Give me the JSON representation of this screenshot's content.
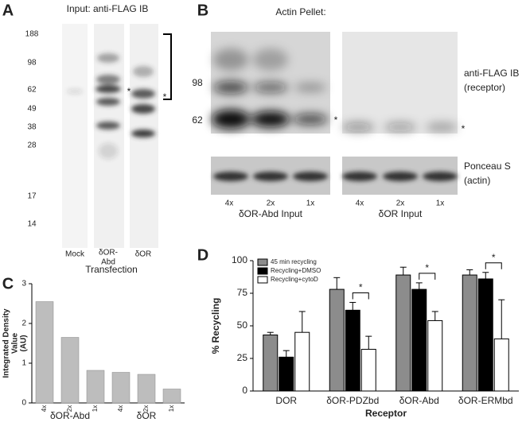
{
  "panels": {
    "a": {
      "label": "A",
      "title": "Input: anti-FLAG IB",
      "markers": [
        "188",
        "98",
        "62",
        "49",
        "38",
        "28",
        "17",
        "14"
      ],
      "lanes": [
        "Mock",
        "δOR-",
        "Abd",
        "δOR"
      ],
      "x_label": "Transfection",
      "stars": [
        "*",
        "*"
      ]
    },
    "b": {
      "label": "B",
      "title": "Actin Pellet:",
      "markers": [
        "98",
        "62"
      ],
      "right_labels": [
        "anti-FLAG IB",
        "(receptor)",
        "Ponceau S",
        "(actin)"
      ],
      "lanes": [
        "4x",
        "2x",
        "1x",
        "4x",
        "2x",
        "1x"
      ],
      "groups": [
        "δOR-Abd Input",
        "δOR Input"
      ],
      "stars": [
        "*",
        "*"
      ]
    },
    "c": {
      "label": "C"
    },
    "d": {
      "label": "D"
    }
  },
  "chart_data": [
    {
      "type": "bar",
      "y_label": [
        "Integrated Density",
        "Value",
        "(AU)"
      ],
      "categories": [
        "4x",
        "2x",
        "1x",
        "4x",
        "2x",
        "1x"
      ],
      "groups": [
        "δOR-Abd",
        "δOR"
      ],
      "values": [
        2.55,
        1.65,
        0.82,
        0.77,
        0.72,
        0.35
      ],
      "color": "#bdbdbd",
      "ylim": [
        0,
        3
      ],
      "yticks": [
        0,
        1,
        2,
        3
      ]
    },
    {
      "type": "grouped-bar",
      "y_label": "% Recycling",
      "x_label": "Receptor",
      "categories": [
        "DOR",
        "δOR-PDZbd",
        "δOR-Abd",
        "δOR-ERMbd"
      ],
      "series": [
        {
          "name": "45 min recycling",
          "color": "#8c8c8c",
          "values": [
            43,
            78,
            89,
            89
          ],
          "errors": [
            2,
            9,
            6,
            4
          ]
        },
        {
          "name": "Recycling+DMSO",
          "color": "#000000",
          "values": [
            26,
            62,
            78,
            86
          ],
          "errors": [
            5,
            6,
            5,
            5
          ]
        },
        {
          "name": "Recycling+cytoD",
          "color": "#ffffff",
          "values": [
            45,
            32,
            54,
            40
          ],
          "errors": [
            16,
            10,
            7,
            30
          ]
        }
      ],
      "annotations": [
        "*",
        "*",
        "*"
      ],
      "ylim": [
        0,
        100
      ],
      "yticks": [
        0,
        25,
        50,
        75,
        100
      ],
      "legend": "top-left"
    }
  ]
}
